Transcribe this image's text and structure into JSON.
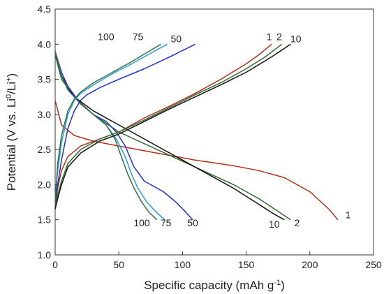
{
  "chart_data": {
    "type": "line",
    "title": "",
    "xlabel": "Specific capacity (mAh g",
    "xlabel_sup": "-1",
    "xlabel_end": ")",
    "ylabel_parts": {
      "pre": "Potential (V vs. Li",
      "sup1": "0",
      "mid": "/Li",
      "sup2": "+",
      "post": ")"
    },
    "xlim": [
      0,
      250
    ],
    "ylim": [
      1.0,
      4.5
    ],
    "xticks": [
      0,
      50,
      100,
      150,
      200,
      250
    ],
    "yticks": [
      1.0,
      1.5,
      2.0,
      2.5,
      3.0,
      3.5,
      4.0,
      4.5
    ],
    "xtick_labels": [
      "0",
      "50",
      "100",
      "150",
      "200",
      "250"
    ],
    "ytick_labels": [
      "1.0",
      "1.5",
      "2.0",
      "2.5",
      "3.0",
      "3.5",
      "4.0",
      "4.5"
    ],
    "grid": false,
    "legend": "none",
    "series": [
      {
        "name": "1",
        "kind": "discharge",
        "color": "#b5301a",
        "x": [
          0,
          5,
          15,
          30,
          50,
          80,
          110,
          140,
          160,
          180,
          200,
          215,
          222
        ],
        "y": [
          3.2,
          2.85,
          2.7,
          2.62,
          2.55,
          2.45,
          2.35,
          2.27,
          2.2,
          2.1,
          1.9,
          1.65,
          1.5
        ]
      },
      {
        "name": "2",
        "kind": "discharge",
        "color": "#2e6b2e",
        "x": [
          0,
          5,
          15,
          30,
          50,
          80,
          110,
          140,
          160,
          175,
          185
        ],
        "y": [
          3.85,
          3.5,
          3.25,
          3.0,
          2.75,
          2.5,
          2.25,
          2.0,
          1.8,
          1.62,
          1.5
        ]
      },
      {
        "name": "10",
        "kind": "discharge",
        "color": "#111111",
        "x": [
          0,
          5,
          15,
          30,
          50,
          80,
          110,
          140,
          160,
          172,
          180
        ],
        "y": [
          3.9,
          3.55,
          3.25,
          3.05,
          2.85,
          2.55,
          2.25,
          1.95,
          1.72,
          1.58,
          1.5
        ]
      },
      {
        "name": "50",
        "kind": "discharge",
        "color": "#1f2fd0",
        "x": [
          0,
          5,
          10,
          20,
          30,
          40,
          48,
          55,
          62,
          70,
          85,
          95,
          103,
          108
        ],
        "y": [
          3.9,
          3.6,
          3.4,
          3.15,
          3.0,
          2.9,
          2.75,
          2.55,
          2.25,
          2.05,
          1.9,
          1.75,
          1.6,
          1.5
        ]
      },
      {
        "name": "75",
        "kind": "discharge",
        "color": "#1ca0d8",
        "x": [
          0,
          5,
          10,
          20,
          30,
          40,
          48,
          55,
          60,
          65,
          72,
          80,
          86
        ],
        "y": [
          3.9,
          3.55,
          3.35,
          3.15,
          3.0,
          2.85,
          2.65,
          2.4,
          2.15,
          1.95,
          1.75,
          1.6,
          1.5
        ]
      },
      {
        "name": "100",
        "kind": "discharge",
        "color": "#3c6c3c",
        "x": [
          0,
          5,
          10,
          20,
          30,
          40,
          47,
          52,
          57,
          62,
          68,
          74,
          80
        ],
        "y": [
          3.9,
          3.55,
          3.35,
          3.15,
          3.0,
          2.85,
          2.65,
          2.4,
          2.15,
          1.95,
          1.75,
          1.6,
          1.5
        ]
      },
      {
        "name": "1",
        "kind": "charge",
        "color": "#b5301a",
        "x": [
          0,
          2,
          5,
          10,
          20,
          35,
          50,
          70,
          90,
          110,
          130,
          150,
          160,
          170
        ],
        "y": [
          1.7,
          1.95,
          2.2,
          2.4,
          2.55,
          2.65,
          2.75,
          2.95,
          3.12,
          3.3,
          3.5,
          3.72,
          3.85,
          4.0
        ]
      },
      {
        "name": "2",
        "kind": "charge",
        "color": "#2e6b2e",
        "x": [
          0,
          2,
          5,
          10,
          20,
          35,
          50,
          70,
          90,
          110,
          130,
          150,
          165,
          178
        ],
        "y": [
          1.7,
          1.85,
          2.05,
          2.3,
          2.5,
          2.65,
          2.75,
          2.92,
          3.1,
          3.28,
          3.45,
          3.65,
          3.82,
          4.0
        ]
      },
      {
        "name": "10",
        "kind": "charge",
        "color": "#111111",
        "x": [
          0,
          2,
          5,
          10,
          20,
          35,
          50,
          70,
          90,
          110,
          130,
          150,
          170,
          185
        ],
        "y": [
          1.65,
          1.8,
          2.0,
          2.25,
          2.45,
          2.62,
          2.72,
          2.9,
          3.08,
          3.25,
          3.42,
          3.6,
          3.82,
          4.0
        ]
      },
      {
        "name": "50",
        "kind": "charge",
        "color": "#1f2fd0",
        "x": [
          0,
          2,
          5,
          10,
          15,
          20,
          25,
          35,
          50,
          70,
          90,
          110
        ],
        "y": [
          1.75,
          2.0,
          2.35,
          2.8,
          3.05,
          3.2,
          3.28,
          3.38,
          3.5,
          3.65,
          3.82,
          4.0
        ]
      },
      {
        "name": "75",
        "kind": "charge",
        "color": "#1ca0d8",
        "x": [
          0,
          2,
          5,
          10,
          15,
          20,
          30,
          45,
          60,
          75,
          88
        ],
        "y": [
          1.8,
          2.2,
          2.6,
          3.0,
          3.2,
          3.3,
          3.42,
          3.58,
          3.72,
          3.87,
          4.0
        ]
      },
      {
        "name": "100",
        "kind": "charge",
        "color": "#3c6c3c",
        "x": [
          0,
          2,
          5,
          10,
          15,
          20,
          30,
          45,
          60,
          72,
          83
        ],
        "y": [
          1.75,
          2.3,
          2.7,
          3.05,
          3.22,
          3.32,
          3.45,
          3.6,
          3.75,
          3.88,
          4.0
        ]
      }
    ],
    "annotations": [
      {
        "text": "100",
        "x": 40,
        "y": 4.06
      },
      {
        "text": "75",
        "x": 65,
        "y": 4.06
      },
      {
        "text": "50",
        "x": 95,
        "y": 4.03
      },
      {
        "text": "1",
        "x": 168,
        "y": 4.06
      },
      {
        "text": "2",
        "x": 176,
        "y": 4.06
      },
      {
        "text": "10",
        "x": 189,
        "y": 4.03
      },
      {
        "text": "1",
        "x": 230,
        "y": 1.52
      },
      {
        "text": "2",
        "x": 190,
        "y": 1.41
      },
      {
        "text": "10",
        "x": 172,
        "y": 1.39
      },
      {
        "text": "50",
        "x": 108,
        "y": 1.41
      },
      {
        "text": "75",
        "x": 87,
        "y": 1.41
      },
      {
        "text": "100",
        "x": 68,
        "y": 1.41
      }
    ]
  }
}
